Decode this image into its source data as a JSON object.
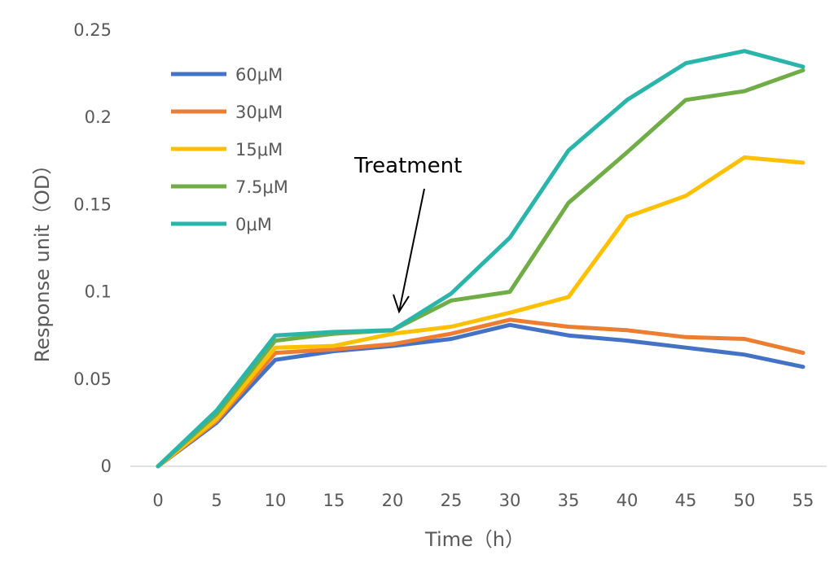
{
  "chart_data": {
    "type": "line",
    "title": "",
    "xlabel": "Time（h）",
    "ylabel": "Response unit（OD）",
    "x": [
      0,
      5,
      10,
      15,
      20,
      25,
      30,
      35,
      40,
      45,
      50,
      55
    ],
    "x_tick_labels": [
      "0",
      "5",
      "10",
      "15",
      "20",
      "25",
      "30",
      "35",
      "40",
      "45",
      "50",
      "55"
    ],
    "ylim": [
      0,
      0.25
    ],
    "y_ticks": [
      0,
      0.05,
      0.1,
      0.15,
      0.2,
      0.25
    ],
    "y_tick_labels": [
      "0",
      "0.05",
      "0.1",
      "0.15",
      "0.2",
      "0.25"
    ],
    "grid": false,
    "legend_position": "top-left",
    "series": [
      {
        "name": "60μM",
        "color": "#4472C4",
        "values": [
          0,
          0.025,
          0.061,
          0.066,
          0.069,
          0.073,
          0.081,
          0.075,
          0.072,
          0.068,
          0.064,
          0.057
        ]
      },
      {
        "name": "30μM",
        "color": "#ED7D31",
        "values": [
          0,
          0.026,
          0.065,
          0.067,
          0.07,
          0.076,
          0.084,
          0.08,
          0.078,
          0.074,
          0.073,
          0.065
        ]
      },
      {
        "name": "15μM",
        "color": "#FFC000",
        "values": [
          0,
          0.027,
          0.068,
          0.069,
          0.076,
          0.08,
          0.088,
          0.097,
          0.143,
          0.155,
          0.177,
          0.174
        ]
      },
      {
        "name": "7.5μM",
        "color": "#70AD47",
        "values": [
          0,
          0.03,
          0.072,
          0.076,
          0.078,
          0.095,
          0.1,
          0.151,
          0.18,
          0.21,
          0.215,
          0.227
        ]
      },
      {
        "name": "0μM",
        "color": "#2AB5AA",
        "values": [
          0,
          0.032,
          0.075,
          0.077,
          0.078,
          0.099,
          0.131,
          0.181,
          0.21,
          0.231,
          0.238,
          0.229
        ]
      }
    ],
    "annotations": [
      {
        "text": "Treatment",
        "points_to_x": 20
      }
    ]
  }
}
